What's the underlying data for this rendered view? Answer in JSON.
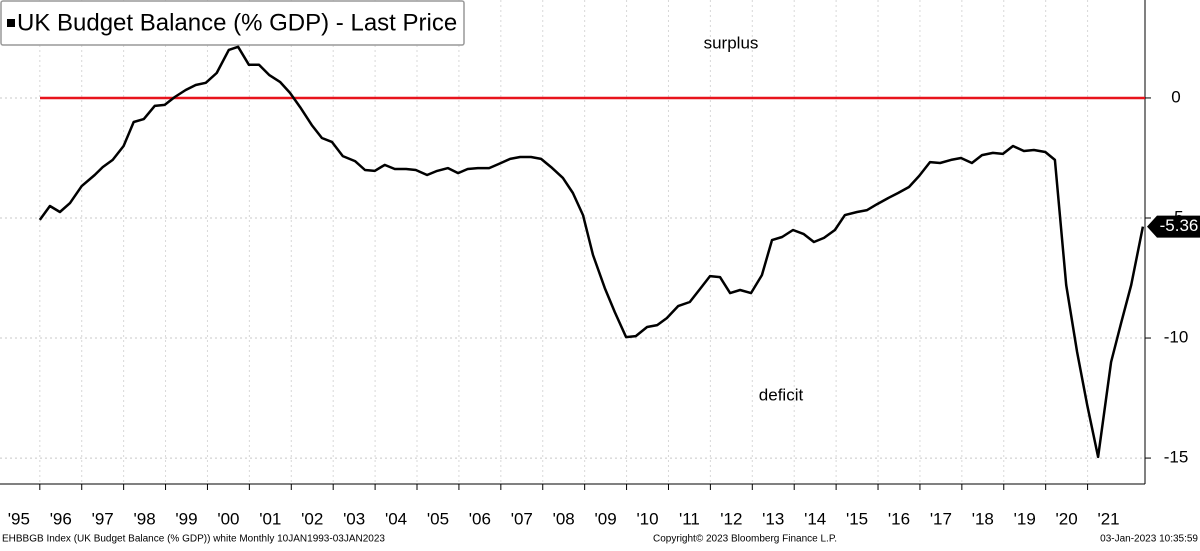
{
  "chart_data": {
    "type": "line",
    "x": [
      1996.0,
      1996.24,
      1996.48,
      1996.72,
      1997.0,
      1997.31,
      1997.5,
      1997.74,
      1998.0,
      1998.24,
      1998.48,
      1998.74,
      1998.98,
      1999.22,
      1999.48,
      1999.72,
      1999.96,
      2000.22,
      2000.51,
      2000.73,
      2000.99,
      2001.23,
      2001.47,
      2001.73,
      2001.97,
      2002.21,
      2002.49,
      2002.73,
      2002.97,
      2003.23,
      2003.52,
      2003.76,
      2003.99,
      2004.23,
      2004.47,
      2004.74,
      2004.97,
      2005.24,
      2005.48,
      2005.74,
      2005.98,
      2006.21,
      2006.45,
      2006.72,
      2006.95,
      2007.22,
      2007.46,
      2007.72,
      2007.96,
      2008.2,
      2008.48,
      2008.72,
      2008.96,
      2009.2,
      2009.48,
      2009.72,
      2009.99,
      2010.22,
      2010.49,
      2010.73,
      2010.96,
      2011.23,
      2011.51,
      2011.75,
      2011.99,
      2012.23,
      2012.47,
      2012.71,
      2012.97,
      2013.23,
      2013.47,
      2013.71,
      2013.97,
      2014.23,
      2014.47,
      2014.71,
      2014.97,
      2015.21,
      2015.5,
      2015.74,
      2015.98,
      2016.24,
      2016.48,
      2016.74,
      2016.98,
      2017.24,
      2017.48,
      2017.74,
      2017.98,
      2018.24,
      2018.48,
      2018.74,
      2018.98,
      2019.22,
      2019.48,
      2019.72,
      2019.99,
      2020.22,
      2020.49,
      2020.75,
      2020.99,
      2021.25,
      2021.56,
      2021.8,
      2022.04,
      2022.32
    ],
    "series": [
      {
        "name": "UK Budget Balance (% GDP) - Last Price",
        "color": "#000000",
        "values": [
          -5.08,
          -4.5,
          -4.75,
          -4.38,
          -3.67,
          -3.21,
          -2.88,
          -2.58,
          -2.0,
          -1.0,
          -0.88,
          -0.33,
          -0.29,
          0.04,
          0.33,
          0.54,
          0.63,
          1.04,
          2.0,
          2.13,
          1.38,
          1.38,
          0.96,
          0.67,
          0.21,
          -0.38,
          -1.13,
          -1.67,
          -1.83,
          -2.42,
          -2.63,
          -3.0,
          -3.04,
          -2.79,
          -2.96,
          -2.96,
          -3.0,
          -3.21,
          -3.04,
          -2.92,
          -3.13,
          -2.96,
          -2.92,
          -2.92,
          -2.75,
          -2.54,
          -2.46,
          -2.46,
          -2.54,
          -2.88,
          -3.33,
          -3.96,
          -4.88,
          -6.54,
          -7.92,
          -8.92,
          -9.96,
          -9.92,
          -9.54,
          -9.46,
          -9.17,
          -8.67,
          -8.5,
          -7.96,
          -7.42,
          -7.46,
          -8.13,
          -8.0,
          -8.13,
          -7.38,
          -5.92,
          -5.79,
          -5.5,
          -5.67,
          -6.0,
          -5.83,
          -5.5,
          -4.88,
          -4.75,
          -4.67,
          -4.42,
          -4.17,
          -3.96,
          -3.71,
          -3.25,
          -2.67,
          -2.71,
          -2.58,
          -2.5,
          -2.71,
          -2.38,
          -2.29,
          -2.33,
          -2.0,
          -2.21,
          -2.17,
          -2.25,
          -2.58,
          -7.79,
          -10.58,
          -12.79,
          -14.95,
          -11.0,
          -9.38,
          -7.79,
          -5.36
        ]
      }
    ],
    "xlim": [
      1995.05,
      2022.37
    ],
    "xticks": [
      {
        "value": 1995,
        "label": "'95"
      },
      {
        "value": 1996,
        "label": "'96"
      },
      {
        "value": 1997,
        "label": "'97"
      },
      {
        "value": 1998,
        "label": "'98"
      },
      {
        "value": 1999,
        "label": "'99"
      },
      {
        "value": 2000,
        "label": "'00"
      },
      {
        "value": 2001,
        "label": "'01"
      },
      {
        "value": 2002,
        "label": "'02"
      },
      {
        "value": 2003,
        "label": "'03"
      },
      {
        "value": 2004,
        "label": "'04"
      },
      {
        "value": 2005,
        "label": "'05"
      },
      {
        "value": 2006,
        "label": "'06"
      },
      {
        "value": 2007,
        "label": "'07"
      },
      {
        "value": 2008,
        "label": "'08"
      },
      {
        "value": 2009,
        "label": "'09"
      },
      {
        "value": 2010,
        "label": "'10"
      },
      {
        "value": 2011,
        "label": "'11"
      },
      {
        "value": 2012,
        "label": "'12"
      },
      {
        "value": 2013,
        "label": "'13"
      },
      {
        "value": 2014,
        "label": "'14"
      },
      {
        "value": 2015,
        "label": "'15"
      },
      {
        "value": 2016,
        "label": "'16"
      },
      {
        "value": 2017,
        "label": "'17"
      },
      {
        "value": 2018,
        "label": "'18"
      },
      {
        "value": 2019,
        "label": "'19"
      },
      {
        "value": 2020,
        "label": "'20"
      },
      {
        "value": 2021,
        "label": "'21"
      }
    ],
    "ylim": [
      -16.08,
      4.08
    ],
    "yticks": [
      0,
      -5,
      -10,
      -15
    ],
    "grid": true,
    "reference_line": {
      "value": 0,
      "color": "#e8141c"
    },
    "annotations": [
      "surplus",
      "deficit"
    ],
    "footer": {
      "left": "EHBBGB Index (UK Budget Balance (% GDP)) white  Monthly 10JAN1993-03JAN2023",
      "center": "Copyright© 2023 Bloomberg Finance L.P.",
      "right": "03-Jan-2023 10:35:59"
    }
  }
}
